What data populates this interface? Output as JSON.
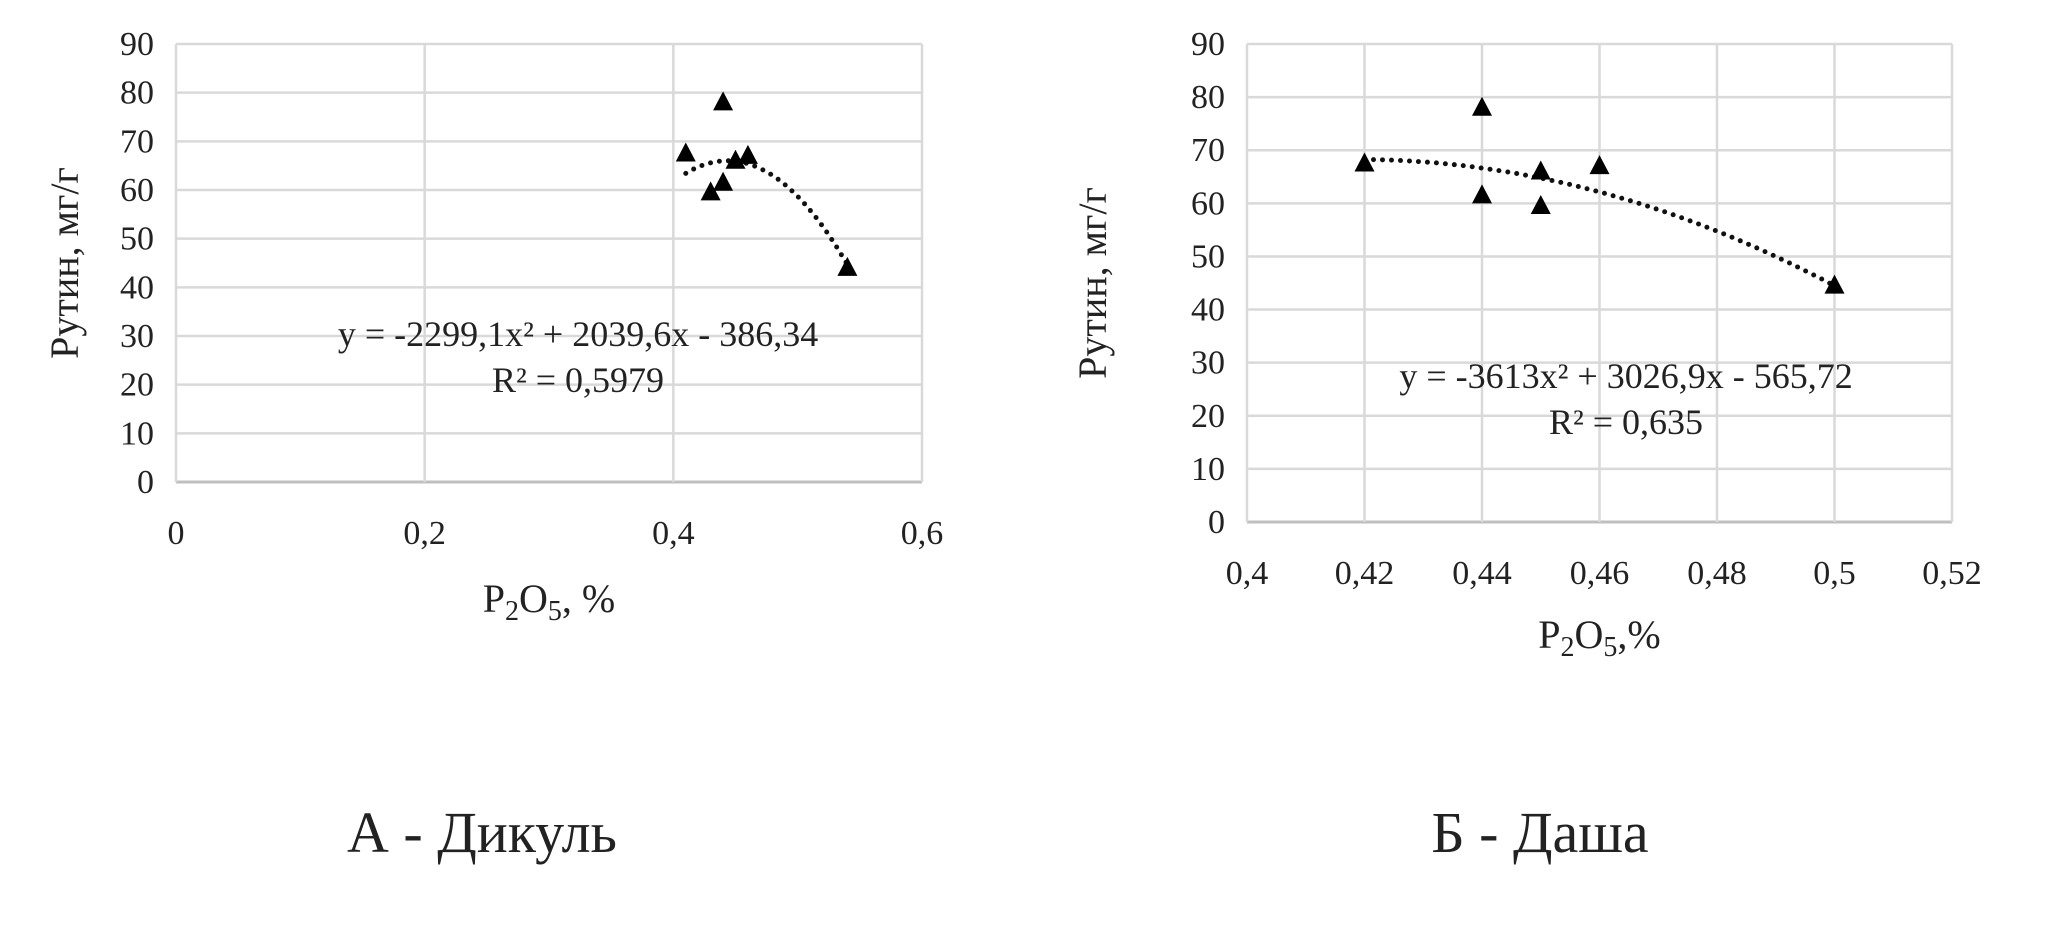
{
  "chart_data": [
    {
      "type": "scatter",
      "caption": "А - Дикуль",
      "xlabel_main": "P",
      "xlabel_sub1": "2",
      "xlabel_mid": "O",
      "xlabel_sub2": "5",
      "xlabel_tail": ", %",
      "ylabel": "Рутин, мг/г",
      "xlim": [
        0,
        0.6
      ],
      "ylim": [
        0,
        90
      ],
      "xticks": [
        0,
        0.2,
        0.4,
        0.6
      ],
      "xtick_labels": [
        "0",
        "0,2",
        "0,4",
        "0,6"
      ],
      "yticks": [
        0,
        10,
        20,
        30,
        40,
        50,
        60,
        70,
        80,
        90
      ],
      "grid": true,
      "marker": "triangle",
      "points": [
        [
          0.41,
          67.5
        ],
        [
          0.44,
          78
        ],
        [
          0.43,
          59.5
        ],
        [
          0.44,
          61.5
        ],
        [
          0.45,
          66
        ],
        [
          0.46,
          67
        ],
        [
          0.54,
          44
        ]
      ],
      "trendline": {
        "type": "polynomial",
        "coef": [
          -2299.1,
          2039.6,
          -386.34
        ],
        "x_range": [
          0.41,
          0.54
        ],
        "style": "dotted"
      },
      "equation": "y = -2299,1x² + 2039,6x - 386,34",
      "r2": "R² = 0,5979"
    },
    {
      "type": "scatter",
      "caption": "Б - Даша",
      "xlabel_main": "P",
      "xlabel_sub1": "2",
      "xlabel_mid": "O",
      "xlabel_sub2": "5",
      "xlabel_tail": ",%",
      "ylabel": "Рутин, мг/г",
      "xlim": [
        0.4,
        0.52
      ],
      "ylim": [
        0,
        90
      ],
      "xticks": [
        0.4,
        0.42,
        0.44,
        0.46,
        0.48,
        0.5,
        0.52
      ],
      "xtick_labels": [
        "0,4",
        "0,42",
        "0,44",
        "0,46",
        "0,48",
        "0,5",
        "0,52"
      ],
      "yticks": [
        0,
        10,
        20,
        30,
        40,
        50,
        60,
        70,
        80,
        90
      ],
      "grid": true,
      "marker": "triangle",
      "points": [
        [
          0.42,
          67.5
        ],
        [
          0.44,
          78
        ],
        [
          0.44,
          61.5
        ],
        [
          0.45,
          66
        ],
        [
          0.45,
          59.5
        ],
        [
          0.46,
          67
        ],
        [
          0.5,
          44.5
        ]
      ],
      "trendline": {
        "type": "polynomial",
        "coef": [
          -3613,
          3026.9,
          -565.72
        ],
        "x_range": [
          0.42,
          0.5
        ],
        "style": "dotted"
      },
      "equation": "y = -3613x² + 3026,9x - 565,72",
      "r2": "R² = 0,635"
    }
  ]
}
